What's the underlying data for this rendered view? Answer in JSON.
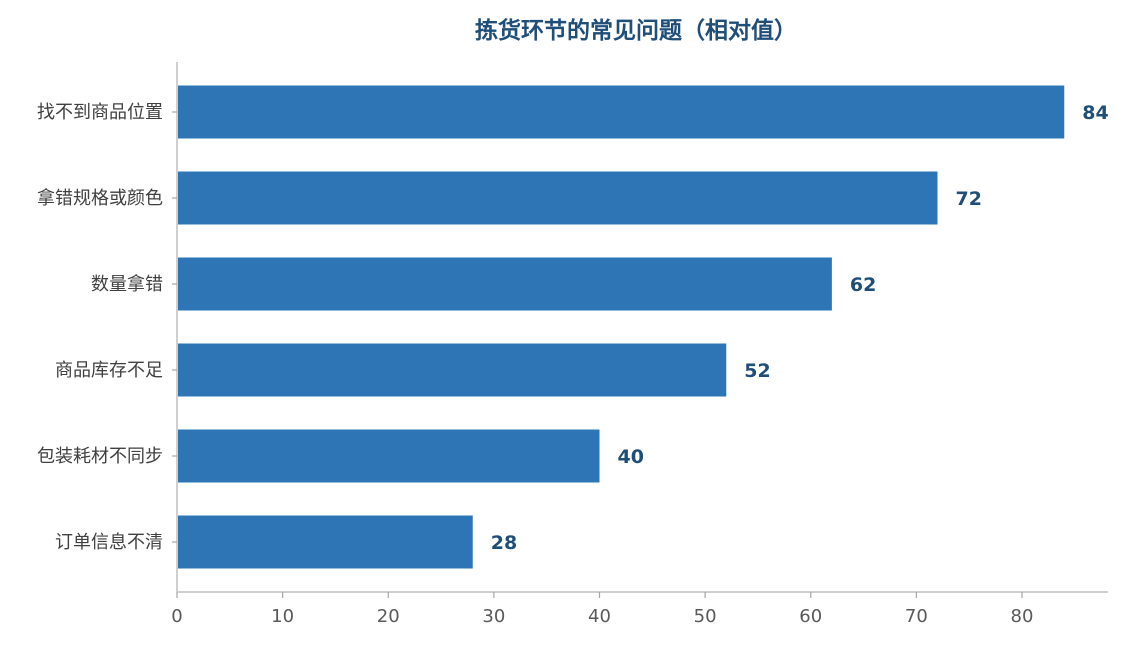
{
  "chart_data": {
    "type": "bar",
    "orientation": "horizontal",
    "title": "拣货环节的常见问题（相对值）",
    "xlabel": "",
    "ylabel": "",
    "categories": [
      "找不到商品位置",
      "拿错规格或颜色",
      "数量拿错",
      "商品库存不足",
      "包装耗材不同步",
      "订单信息不清"
    ],
    "values": [
      84,
      72,
      62,
      52,
      40,
      28
    ],
    "xlim": [
      0,
      88
    ],
    "xticks": [
      0,
      10,
      20,
      30,
      40,
      50,
      60,
      70,
      80
    ],
    "grid": false,
    "bar_color": "#2e75b6",
    "value_label_color": "#1f4e79",
    "title_color": "#1f4e79"
  }
}
